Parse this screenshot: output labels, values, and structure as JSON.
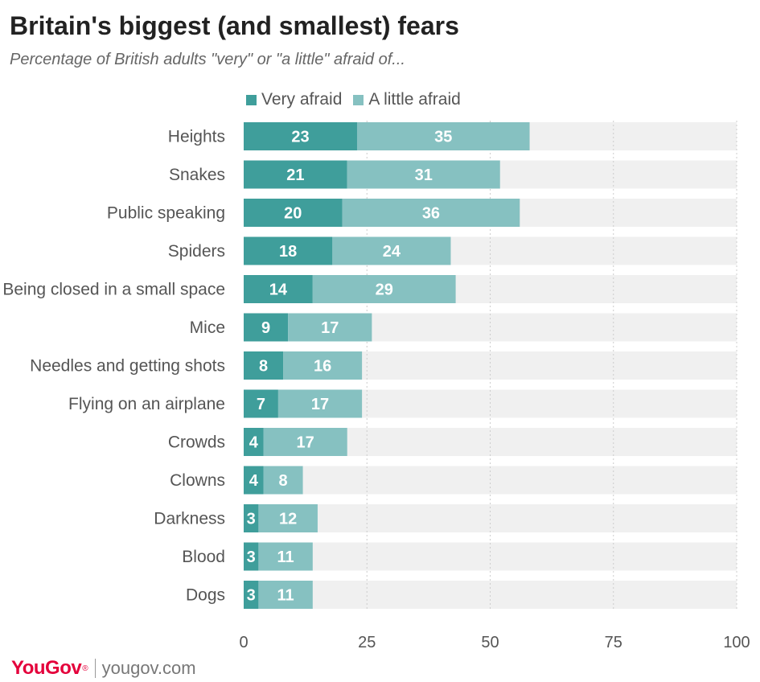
{
  "header": {
    "title": "Britain's biggest (and smallest) fears",
    "subtitle": "Percentage of British adults \"very\" or \"a little\" afraid of..."
  },
  "footer": {
    "logo": "YouGov",
    "logo_mark": "®",
    "site": "yougov.com"
  },
  "colors": {
    "very_afraid": "#3f9e9b",
    "a_little_afraid": "#86c1c1",
    "track": "#f0f0f0",
    "gridline": "#cccccc",
    "category_text": "#555555",
    "value_text": "#ffffff"
  },
  "chart_data": {
    "type": "bar",
    "orientation": "horizontal",
    "stacked": true,
    "categories": [
      "Heights",
      "Snakes",
      "Public speaking",
      "Spiders",
      "Being closed in a small space",
      "Mice",
      "Needles and getting shots",
      "Flying on an airplane",
      "Crowds",
      "Clowns",
      "Darkness",
      "Blood",
      "Dogs"
    ],
    "series": [
      {
        "name": "Very afraid",
        "values": [
          23,
          21,
          20,
          18,
          14,
          9,
          8,
          7,
          4,
          4,
          3,
          3,
          3
        ]
      },
      {
        "name": "A little afraid",
        "values": [
          35,
          31,
          36,
          24,
          29,
          17,
          16,
          17,
          17,
          8,
          12,
          11,
          11
        ]
      }
    ],
    "xlim": [
      0,
      100
    ],
    "xticks": [
      0,
      25,
      50,
      75,
      100
    ],
    "grid": true,
    "legend": "top"
  }
}
